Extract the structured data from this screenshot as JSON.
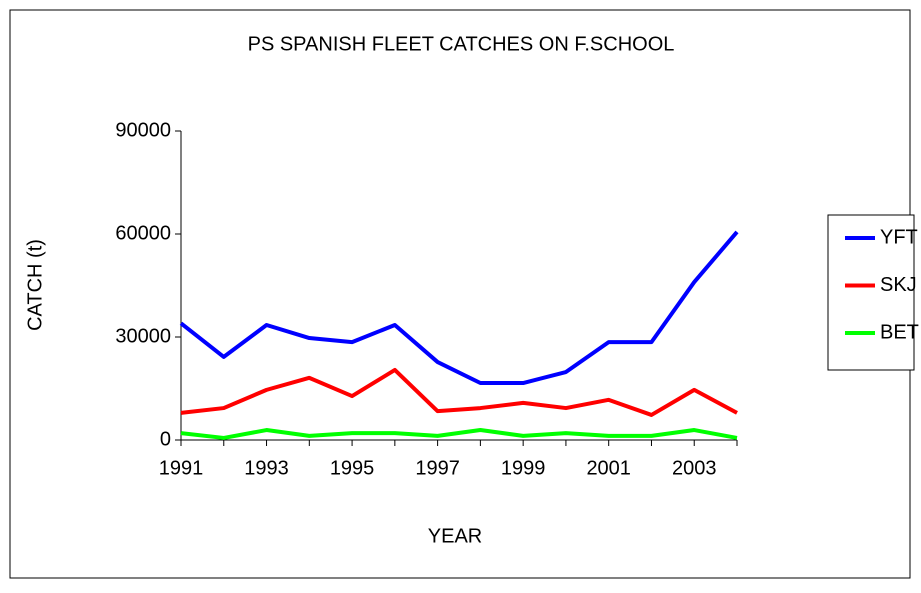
{
  "chart_data": {
    "type": "line",
    "title": "PS SPANISH FLEET CATCHES ON F.SCHOOL",
    "x_label": "YEAR",
    "y_label": "CATCH (t)",
    "categories": [
      "1991",
      null,
      "1993",
      null,
      "1995",
      null,
      "1997",
      null,
      "1999",
      null,
      "2001",
      null,
      "2003",
      null
    ],
    "series": [
      {
        "name": "YFT",
        "color": "#0000ff",
        "values": [
          34000,
          24200,
          33500,
          29700,
          28500,
          33500,
          22700,
          16600,
          16600,
          19800,
          28500,
          28500,
          46000,
          60600
        ]
      },
      {
        "name": "SKJ",
        "color": "#ff0000",
        "values": [
          7900,
          9300,
          14600,
          18100,
          12800,
          20400,
          8400,
          9300,
          10800,
          9300,
          11700,
          7300,
          14600,
          7900
        ]
      },
      {
        "name": "BET",
        "color": "#00ff00",
        "values": [
          2000,
          600,
          2900,
          1200,
          2000,
          2000,
          1200,
          2900,
          1200,
          2000,
          1200,
          1200,
          2900,
          600
        ]
      }
    ],
    "ylim": [
      0,
      90000
    ],
    "yticks": [
      0,
      30000,
      60000,
      90000
    ],
    "grid": false,
    "legend": "right"
  }
}
